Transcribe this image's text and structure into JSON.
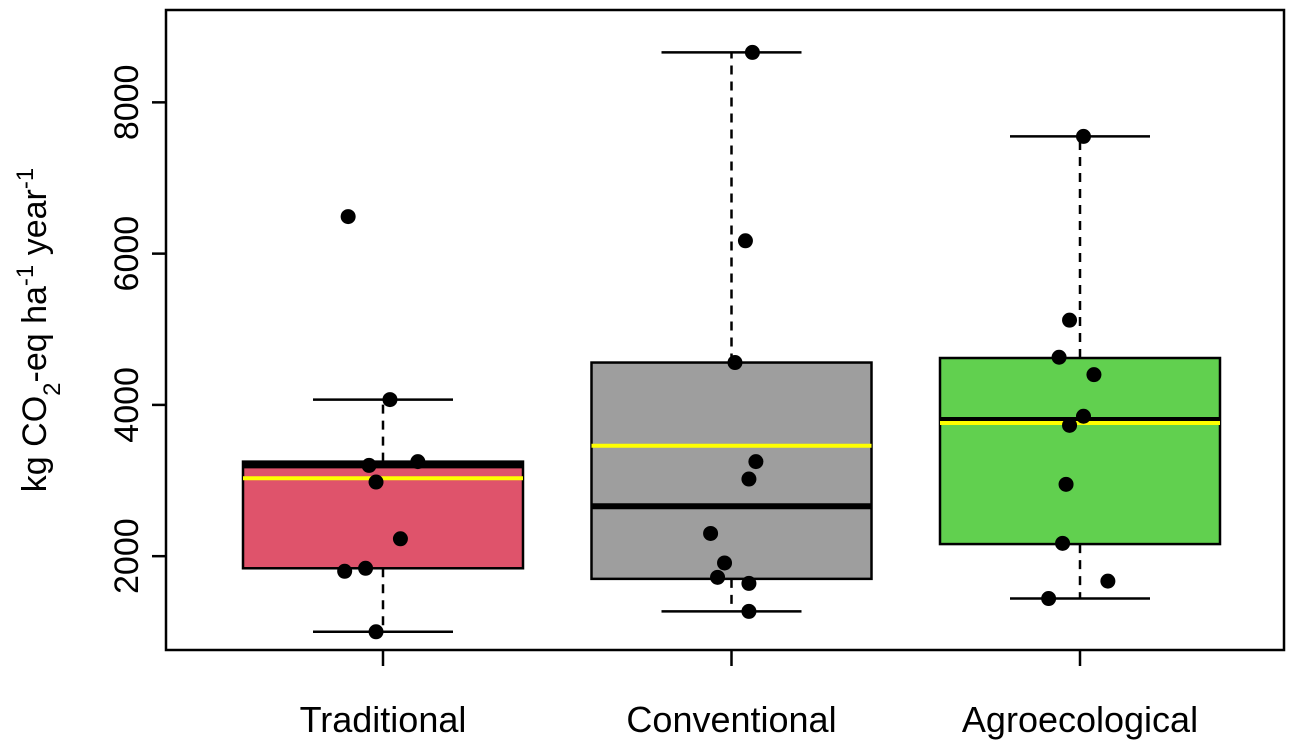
{
  "chart_data": {
    "type": "boxplot",
    "title": "",
    "xlabel": "",
    "ylabel": {
      "parts": [
        {
          "text": "kg CO",
          "shift": "normal"
        },
        {
          "text": "2",
          "shift": "sub"
        },
        {
          "text": "-eq ha",
          "shift": "normal"
        },
        {
          "text": "-1",
          "shift": "super"
        },
        {
          "text": " year",
          "shift": "normal"
        },
        {
          "text": "-1",
          "shift": "super"
        }
      ]
    },
    "ylim": [
      700,
      8950
    ],
    "yticks": [
      2000,
      4000,
      6000,
      8000
    ],
    "ytick_labels": [
      "2000",
      "4000",
      "6000",
      "8000"
    ],
    "grid": false,
    "mean_line_color": "#ffff00",
    "median_line_color": "#000000",
    "categories": [
      "Traditional",
      "Conventional",
      "Agroecological"
    ],
    "boxes": [
      {
        "name": "Traditional",
        "color": "#df536b",
        "whisker_low": 1000,
        "q1": 1840,
        "median": 3200,
        "q3": 3250,
        "whisker_high": 4070,
        "mean": 3030
      },
      {
        "name": "Conventional",
        "color": "#9e9e9e",
        "whisker_low": 1270,
        "q1": 1700,
        "median": 2660,
        "q3": 4560,
        "whisker_high": 8660,
        "mean": 3460
      },
      {
        "name": "Agroecological",
        "color": "#61d04f",
        "whisker_low": 1440,
        "q1": 2160,
        "median": 3800,
        "q3": 4620,
        "whisker_high": 7550,
        "mean": 3760
      }
    ],
    "points": [
      {
        "category": "Traditional",
        "jitter": -0.1,
        "y": 6490
      },
      {
        "category": "Traditional",
        "jitter": 0.02,
        "y": 4070
      },
      {
        "category": "Traditional",
        "jitter": 0.1,
        "y": 3250
      },
      {
        "category": "Traditional",
        "jitter": -0.04,
        "y": 3200
      },
      {
        "category": "Traditional",
        "jitter": -0.02,
        "y": 2980
      },
      {
        "category": "Traditional",
        "jitter": 0.05,
        "y": 2230
      },
      {
        "category": "Traditional",
        "jitter": -0.05,
        "y": 1840
      },
      {
        "category": "Traditional",
        "jitter": -0.11,
        "y": 1800
      },
      {
        "category": "Traditional",
        "jitter": -0.02,
        "y": 1000
      },
      {
        "category": "Conventional",
        "jitter": 0.06,
        "y": 8660
      },
      {
        "category": "Conventional",
        "jitter": 0.04,
        "y": 6170
      },
      {
        "category": "Conventional",
        "jitter": 0.01,
        "y": 4560
      },
      {
        "category": "Conventional",
        "jitter": 0.07,
        "y": 3250
      },
      {
        "category": "Conventional",
        "jitter": 0.05,
        "y": 3020
      },
      {
        "category": "Conventional",
        "jitter": -0.06,
        "y": 2300
      },
      {
        "category": "Conventional",
        "jitter": -0.02,
        "y": 1910
      },
      {
        "category": "Conventional",
        "jitter": -0.04,
        "y": 1720
      },
      {
        "category": "Conventional",
        "jitter": 0.05,
        "y": 1640
      },
      {
        "category": "Conventional",
        "jitter": 0.05,
        "y": 1270
      },
      {
        "category": "Agroecological",
        "jitter": 0.01,
        "y": 7550
      },
      {
        "category": "Agroecological",
        "jitter": -0.03,
        "y": 5120
      },
      {
        "category": "Agroecological",
        "jitter": -0.06,
        "y": 4630
      },
      {
        "category": "Agroecological",
        "jitter": 0.04,
        "y": 4400
      },
      {
        "category": "Agroecological",
        "jitter": 0.01,
        "y": 3850
      },
      {
        "category": "Agroecological",
        "jitter": -0.03,
        "y": 3730
      },
      {
        "category": "Agroecological",
        "jitter": -0.04,
        "y": 2950
      },
      {
        "category": "Agroecological",
        "jitter": -0.05,
        "y": 2170
      },
      {
        "category": "Agroecological",
        "jitter": 0.08,
        "y": 1670
      },
      {
        "category": "Agroecological",
        "jitter": -0.09,
        "y": 1440
      }
    ]
  }
}
